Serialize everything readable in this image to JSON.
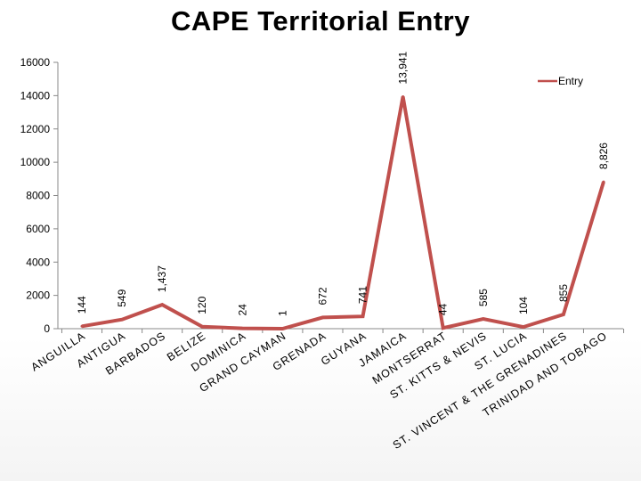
{
  "title": "CAPE Territorial Entry",
  "chart_data": {
    "type": "line",
    "title": "CAPE Territorial Entry",
    "categories": [
      "ANGUILLA",
      "ANTIGUA",
      "BARBADOS",
      "BELIZE",
      "DOMINICA",
      "GRAND CAYMAN",
      "GRENADA",
      "GUYANA",
      "JAMAICA",
      "MONTSERRAT",
      "ST. KITTS & NEVIS",
      "ST. LUCIA",
      "ST. VINCENT & THE GRENADINES",
      "TRINIDAD AND TOBAGO"
    ],
    "series": [
      {
        "name": "Entry",
        "values": [
          144,
          549,
          1437,
          120,
          24,
          1,
          672,
          741,
          13941,
          44,
          585,
          104,
          855,
          8826
        ],
        "labels": [
          "144",
          "549",
          "1,437",
          "120",
          "24",
          "1",
          "672",
          "741",
          "13,941",
          "44",
          "585",
          "104",
          "855",
          "8,826"
        ],
        "color": "#c0504d"
      }
    ],
    "ylim": [
      0,
      16000
    ],
    "yticks": [
      "0",
      "2000",
      "4000",
      "6000",
      "8000",
      "10000",
      "12000",
      "14000",
      "16000"
    ],
    "grid": false,
    "legend": "top-right",
    "xlabel": "",
    "ylabel": ""
  }
}
